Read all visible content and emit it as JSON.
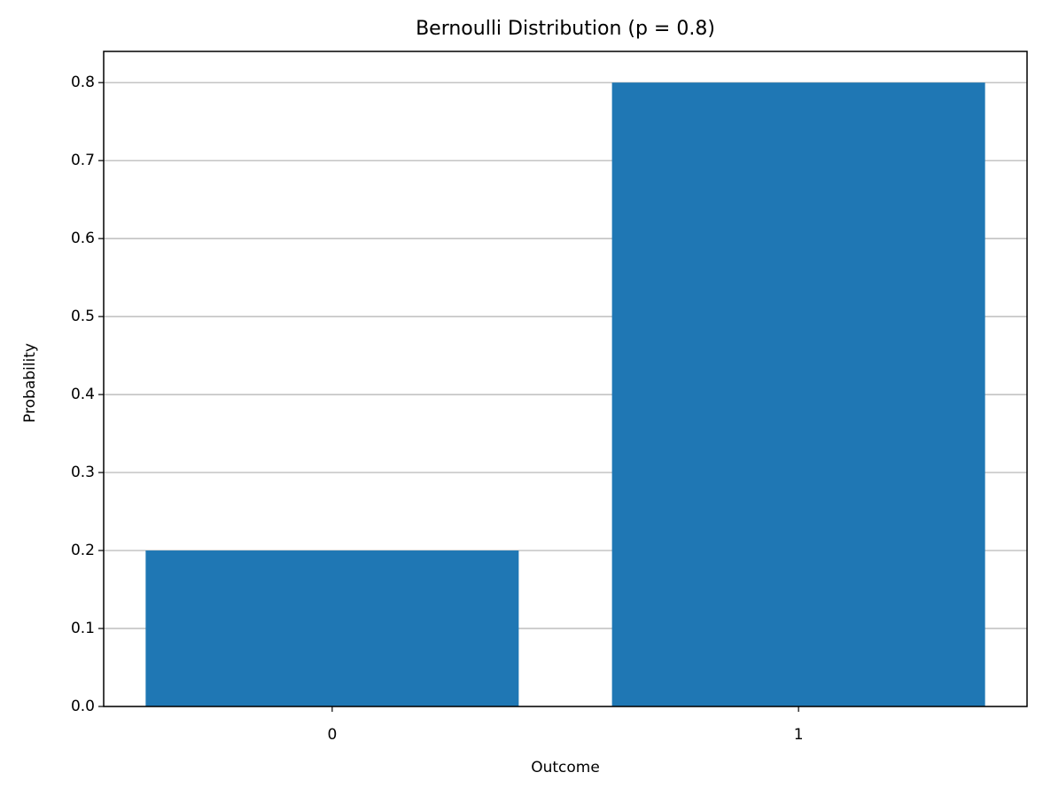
{
  "chart_data": {
    "type": "bar",
    "title": "Bernoulli Distribution (p = 0.8)",
    "x_label": "Outcome",
    "y_label": "Probability",
    "categories": [
      "0",
      "1"
    ],
    "values": [
      0.2,
      0.8
    ],
    "color": "#1f77b4",
    "ylim": [
      0,
      0.84
    ],
    "yticks": [
      {
        "value": 0,
        "label": "0.0"
      },
      0.1,
      0.2,
      0.3,
      0.4,
      0.5,
      0.6,
      0.7,
      0.8
    ],
    "grid": true
  }
}
